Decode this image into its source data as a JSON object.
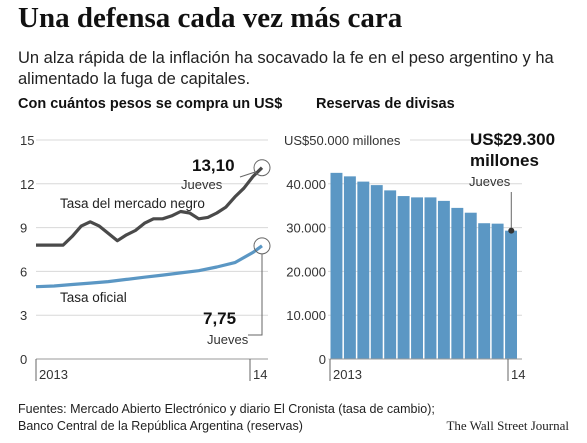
{
  "header": {
    "title": "Una defensa cada vez más cara",
    "subtitle": "Un alza rápida de la inflación ha socavado la fe en el peso argentino y ha alimentado la fuga de capitales."
  },
  "footer": {
    "source": "Fuentes: Mercado Abierto Electrónico y diario El Cronista (tasa de cambio); Banco Central de la República Argentina (reservas)",
    "brand": "The Wall Street Journal"
  },
  "chart_data": [
    {
      "type": "line",
      "title": "Con cuántos pesos se compra un US$",
      "ylim": [
        0,
        15
      ],
      "yticks": [
        "0",
        "3",
        "6",
        "9",
        "12",
        "15"
      ],
      "xticks": [
        "2013",
        "14"
      ],
      "grid": true,
      "series": [
        {
          "name": "Tasa del mercado negro",
          "color": "#4a4a4a",
          "x": [
            0,
            0.5,
            1,
            1.5,
            2,
            2.5,
            3,
            3.5,
            4,
            4.5,
            5,
            5.5,
            6,
            6.5,
            7,
            7.5,
            8,
            8.5,
            9,
            9.5,
            10,
            10.5,
            11,
            11.5,
            12,
            12.5
          ],
          "values": [
            7.8,
            7.8,
            7.8,
            7.8,
            8.4,
            9.1,
            9.4,
            9.1,
            8.6,
            8.1,
            8.5,
            8.8,
            9.3,
            9.6,
            9.6,
            9.8,
            10.1,
            10.0,
            9.6,
            9.7,
            10.0,
            10.4,
            11.1,
            11.7,
            12.5,
            13.1
          ]
        },
        {
          "name": "Tasa oficial",
          "color": "#5b97c4",
          "x": [
            0,
            1,
            2,
            3,
            4,
            5,
            6,
            7,
            8,
            9,
            10,
            11,
            12,
            12.5
          ],
          "values": [
            4.95,
            5.0,
            5.1,
            5.2,
            5.3,
            5.45,
            5.6,
            5.75,
            5.9,
            6.05,
            6.3,
            6.6,
            7.3,
            7.75
          ]
        }
      ],
      "annotations": [
        {
          "value": "13,10",
          "label": "Jueves",
          "series": "Tasa del mercado negro"
        },
        {
          "value": "7,75",
          "label": "Jueves",
          "series": "Tasa oficial"
        }
      ]
    },
    {
      "type": "bar",
      "title": "Reservas de divisas",
      "ylim": [
        0,
        50000
      ],
      "yticks": [
        "US$50.000 millones",
        "40.000",
        "30.000",
        "20.000",
        "10.000",
        "0"
      ],
      "xticks": [
        "2013",
        "14"
      ],
      "grid": true,
      "color": "#5b97c4",
      "values": [
        42500,
        41700,
        40500,
        39700,
        38500,
        37200,
        36900,
        36900,
        36100,
        34500,
        33400,
        31000,
        30900,
        29300
      ],
      "annotations": [
        {
          "value": "US$29.300 millones",
          "label": "Jueves"
        }
      ]
    }
  ]
}
